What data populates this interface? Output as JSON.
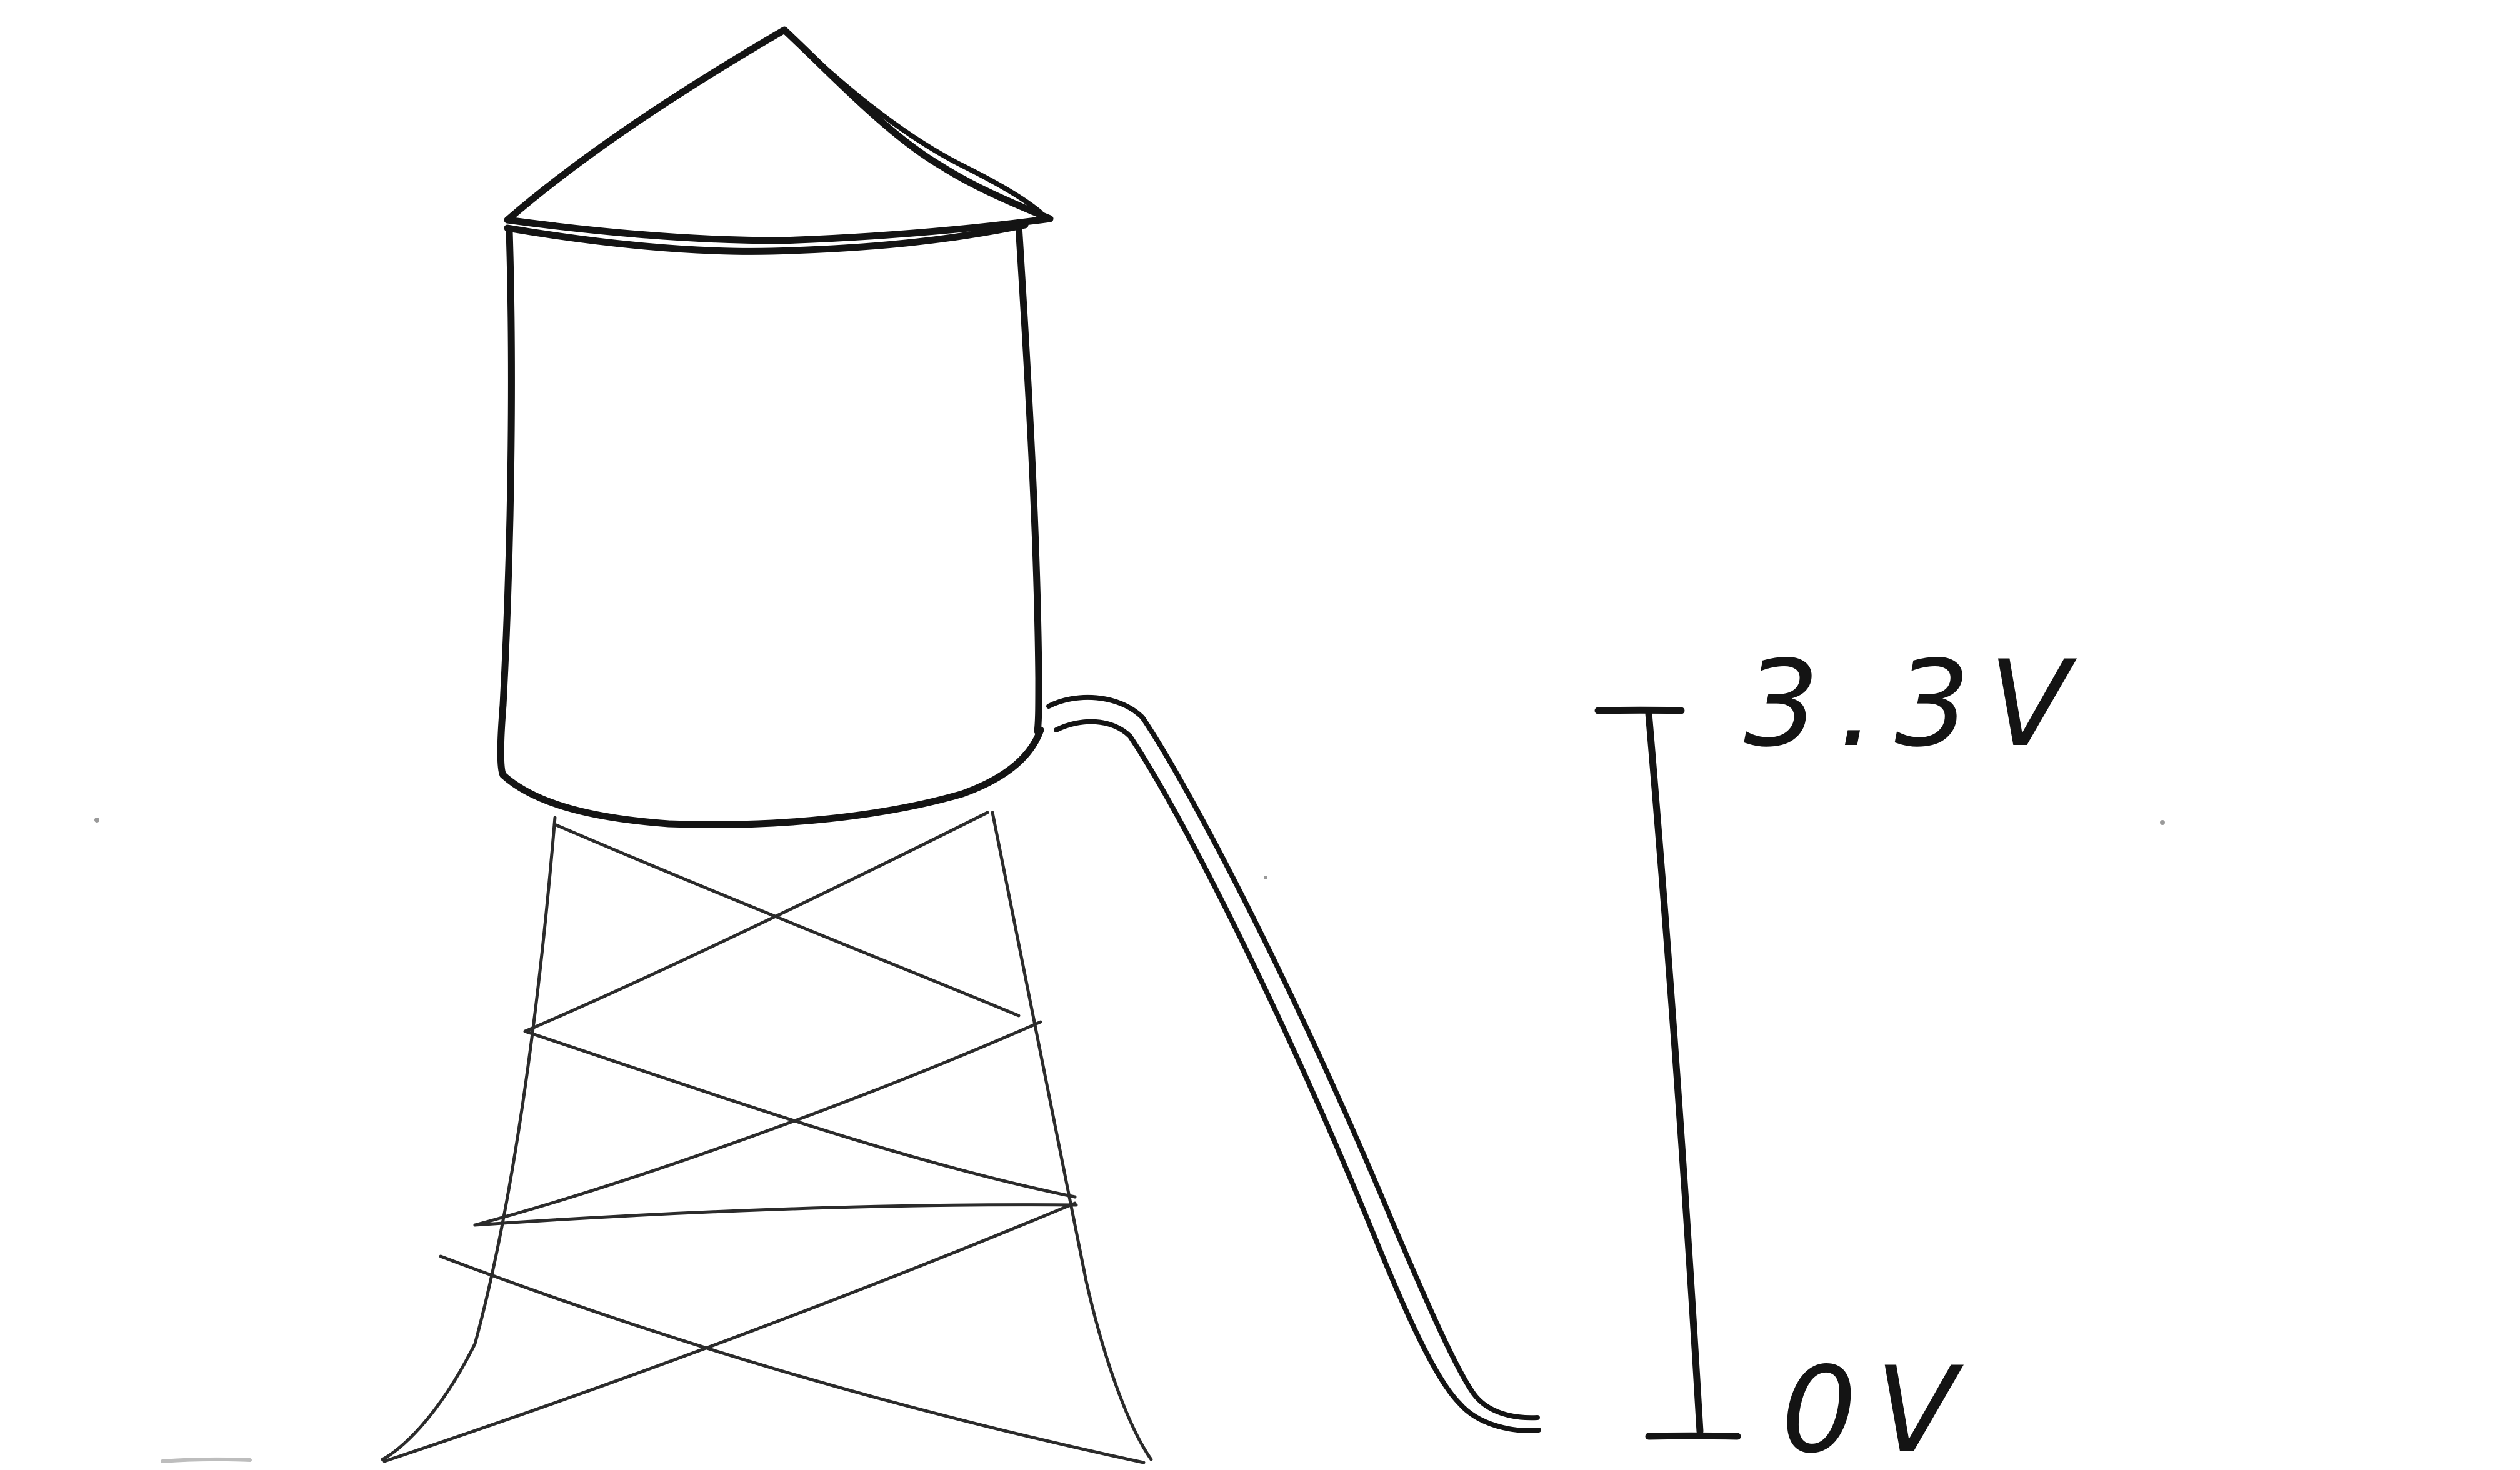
{
  "diagram": {
    "scale": {
      "top_label": "3.3V",
      "bottom_label": "0V"
    },
    "icons": {
      "tower": "water-tower-icon",
      "pipe": "outlet-pipe-icon"
    },
    "colors": {
      "ink": "#141414",
      "paper": "#ffffff"
    }
  }
}
